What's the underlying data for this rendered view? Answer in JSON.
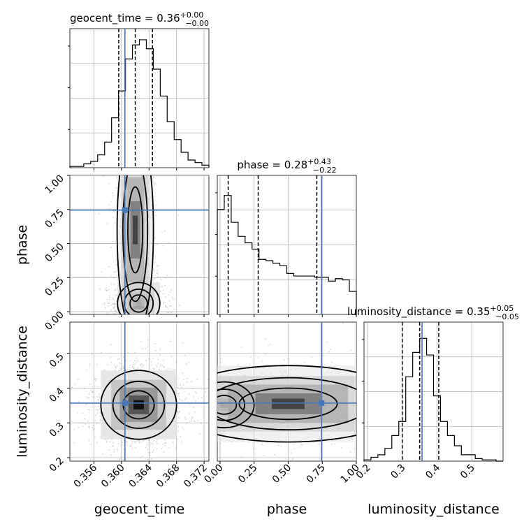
{
  "chart_data": {
    "type": "corner",
    "parameters": [
      {
        "key": "geocent_time",
        "label": "geocent_time",
        "range": [
          0.3525,
          0.3727
        ],
        "ticks": [
          0.356,
          0.36,
          0.364,
          0.368,
          0.372
        ],
        "tick_labels": [
          "0.356",
          "0.360",
          "0.364",
          "0.368",
          "0.372"
        ],
        "title_prefix": "geocent_time = 0.36",
        "title_upper": "+0.00",
        "title_lower": "−0.00",
        "quantiles": [
          0.3596,
          0.362,
          0.3645
        ],
        "truth": 0.3605,
        "histogram": [
          0.01,
          0.01,
          0.03,
          0.05,
          0.1,
          0.2,
          0.39,
          0.6,
          0.85,
          0.96,
          1.0,
          0.93,
          0.77,
          0.56,
          0.36,
          0.22,
          0.12,
          0.06,
          0.04,
          0.02
        ]
      },
      {
        "key": "phase",
        "label": "phase",
        "range": [
          -0.02,
          1.0
        ],
        "ticks": [
          0.0,
          0.25,
          0.5,
          0.75,
          1.0
        ],
        "tick_labels": [
          "0.00",
          "0.25",
          "0.50",
          "0.75",
          "1.00"
        ],
        "title_prefix": "phase = 0.28",
        "title_upper": "+0.43",
        "title_lower": "−0.22",
        "quantiles": [
          0.06,
          0.28,
          0.71
        ],
        "truth": 0.745,
        "histogram": [
          0.82,
          0.93,
          0.72,
          0.61,
          0.56,
          0.51,
          0.43,
          0.42,
          0.4,
          0.38,
          0.32,
          0.3,
          0.3,
          0.3,
          0.29,
          0.29,
          0.26,
          0.28,
          0.27,
          0.18
        ]
      },
      {
        "key": "luminosity_distance",
        "label": "luminosity_distance",
        "range": [
          0.19,
          0.59
        ],
        "ticks": [
          0.2,
          0.3,
          0.4,
          0.5
        ],
        "tick_labels": [
          "0.2",
          "0.3",
          "0.4",
          "0.5"
        ],
        "title_prefix": "luminosity_distance = 0.35",
        "title_upper": "+0.05",
        "title_lower": "−0.05",
        "quantiles": [
          0.3,
          0.35,
          0.405
        ],
        "truth": 0.357,
        "histogram": [
          0.01,
          0.03,
          0.05,
          0.1,
          0.2,
          0.31,
          0.66,
          0.85,
          0.96,
          0.83,
          0.51,
          0.31,
          0.2,
          0.12,
          0.05,
          0.05,
          0.02,
          0.01,
          0.01,
          0.0
        ]
      }
    ],
    "pairs": [
      {
        "x": "geocent_time",
        "y": "phase",
        "mode": {
          "x": 0.3625,
          "y": 0.06,
          "sx": 0.0014,
          "sy": 0.07
        },
        "tail": {
          "x": 0.362,
          "y": 0.6,
          "sx": 0.0012,
          "sy": 0.35
        }
      },
      {
        "x": "geocent_time",
        "y": "luminosity_distance",
        "mode": {
          "x": 0.3625,
          "y": 0.352,
          "sx": 0.0025,
          "sy": 0.045
        }
      },
      {
        "x": "phase",
        "y": "luminosity_distance",
        "mode": {
          "x": 0.03,
          "y": 0.352,
          "sx": 0.1,
          "sy": 0.03
        },
        "tail": {
          "x": 0.5,
          "y": 0.355,
          "sx": 0.4,
          "sy": 0.05
        }
      }
    ],
    "grid": true,
    "truth_color": "#4477bb"
  }
}
